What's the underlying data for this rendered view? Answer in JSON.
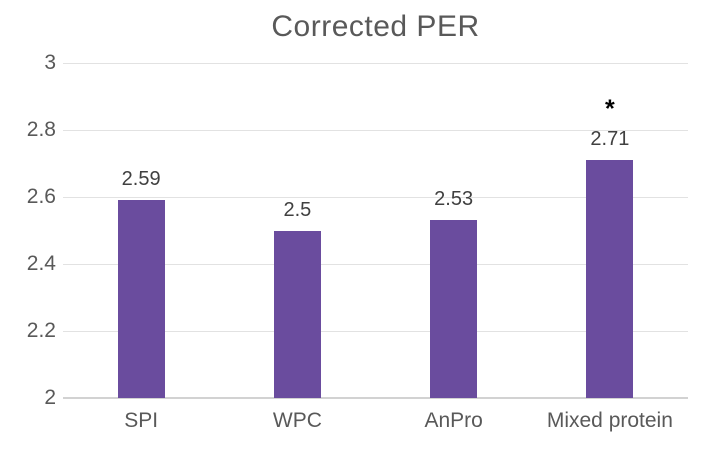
{
  "title": "Corrected PER",
  "chart_data": {
    "type": "bar",
    "title": "Corrected PER",
    "categories": [
      "SPI",
      "WPC",
      "AnPro",
      "Mixed protein"
    ],
    "values": [
      2.59,
      2.5,
      2.53,
      2.71
    ],
    "data_labels": [
      "2.59",
      "2.5",
      "2.53",
      "2.71"
    ],
    "annotations": [
      {
        "category_index": 3,
        "text": "*"
      }
    ],
    "xlabel": "",
    "ylabel": "",
    "ylim": [
      2,
      3
    ],
    "yticks": [
      2,
      2.2,
      2.4,
      2.6,
      2.8,
      3
    ],
    "ytick_labels": [
      "2",
      "2.2",
      "2.4",
      "2.6",
      "2.8",
      "3"
    ],
    "grid": true,
    "legend": false
  },
  "colors": {
    "bar": "#6a4c9e",
    "title_text": "#595959",
    "axis_text": "#595959",
    "data_label_text": "#404040",
    "annotation_text": "#000000",
    "gridline": "#e2e2e2",
    "axis_line": "#d2d2d2",
    "background": "#ffffff"
  }
}
